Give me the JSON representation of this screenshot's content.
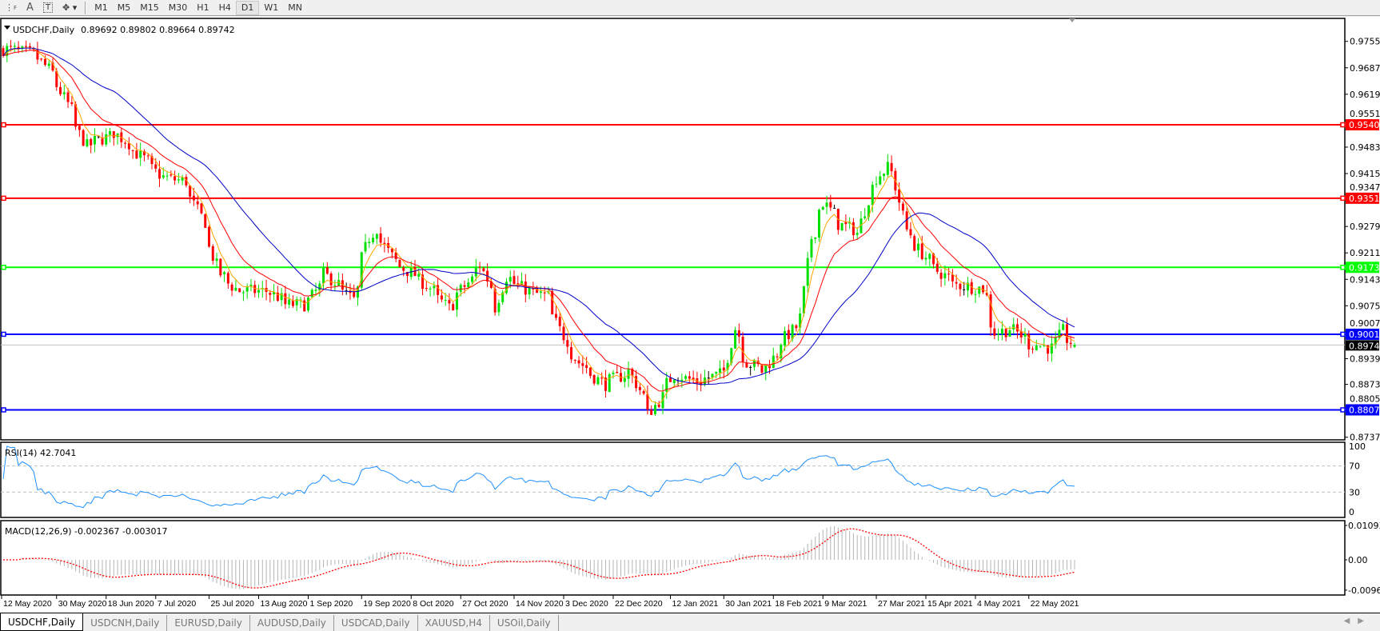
{
  "toolbar": {
    "items": [
      "M1",
      "M5",
      "M15",
      "M30",
      "H1",
      "H4",
      "D1",
      "W1",
      "MN"
    ],
    "active": "D1",
    "text_tool": "A",
    "icons": [
      "grid-icon",
      "text-icon",
      "text-label-icon",
      "arrows-icon"
    ]
  },
  "chart": {
    "symbol_label": "USDCHF,Daily",
    "ohlc": "0.89692 0.89802 0.89664 0.89742",
    "colors": {
      "bull": "#00e000",
      "bear": "#ff0000",
      "doji": "#000000",
      "ma_fast": "#ffa500",
      "ma_mid": "#ff0000",
      "ma_slow": "#0000c8"
    },
    "y_ticks": [
      "0.97550",
      "0.96870",
      "0.96190",
      "0.95510",
      "0.94830",
      "0.94150",
      "0.93470",
      "0.92790",
      "0.92110",
      "0.91430",
      "0.90750",
      "0.90070",
      "0.89390",
      "0.88730",
      "0.88050",
      "0.87370"
    ],
    "levels": [
      {
        "value": "0.95404",
        "color": "#ff0000"
      },
      {
        "value": "0.93516",
        "color": "#ff0000"
      },
      {
        "value": "0.91739",
        "color": "#00ff00"
      },
      {
        "value": "0.90018",
        "color": "#0000ff"
      },
      {
        "value": "0.88074",
        "color": "#0000ff"
      }
    ],
    "current_price": "0.89742"
  },
  "rsi": {
    "label": "RSI(14) 42.7041",
    "ticks": [
      "100",
      "70",
      "30",
      "0"
    ],
    "color": "#1e90ff"
  },
  "macd": {
    "label": "MACD(12,26,9) -0.002367 -0.003017",
    "ticks": [
      "0.010933",
      "0.00",
      "-0.009653"
    ]
  },
  "chart_data": {
    "type": "candlestick",
    "symbol": "USDCHF",
    "timeframe": "Daily",
    "last_bar": {
      "open": 0.89692,
      "high": 0.89802,
      "low": 0.89664,
      "close": 0.89742
    },
    "ylim": [
      0.8737,
      0.9755
    ],
    "x_tick_labels": [
      "12 May 2020",
      "30 May 2020",
      "18 Jun 2020",
      "7 Jul 2020",
      "25 Jul 2020",
      "13 Aug 2020",
      "1 Sep 2020",
      "19 Sep 2020",
      "8 Oct 2020",
      "27 Oct 2020",
      "14 Nov 2020",
      "3 Dec 2020",
      "22 Dec 2020",
      "12 Jan 2021",
      "30 Jan 2021",
      "18 Feb 2021",
      "9 Mar 2021",
      "27 Mar 2021",
      "15 Apr 2021",
      "4 May 2021",
      "22 May 2021"
    ],
    "approx_close_path": [
      [
        "2020-05-13",
        0.9735
      ],
      [
        "2020-05-24",
        0.972
      ],
      [
        "2020-05-31",
        0.9656
      ],
      [
        "2020-06-11",
        0.9486
      ],
      [
        "2020-06-22",
        0.952
      ],
      [
        "2020-07-09",
        0.9406
      ],
      [
        "2020-07-17",
        0.9395
      ],
      [
        "2020-07-24",
        0.929
      ],
      [
        "2020-07-30",
        0.9157
      ],
      [
        "2020-08-06",
        0.9113
      ],
      [
        "2020-08-17",
        0.9113
      ],
      [
        "2020-08-24",
        0.9078
      ],
      [
        "2020-08-31",
        0.9078
      ],
      [
        "2020-09-07",
        0.9157
      ],
      [
        "2020-09-17",
        0.909
      ],
      [
        "2020-09-23",
        0.925
      ],
      [
        "2020-09-25",
        0.9275
      ],
      [
        "2020-10-02",
        0.919
      ],
      [
        "2020-10-13",
        0.9135
      ],
      [
        "2020-10-22",
        0.907
      ],
      [
        "2020-11-03",
        0.918
      ],
      [
        "2020-11-09",
        0.907
      ],
      [
        "2020-11-12",
        0.915
      ],
      [
        "2020-11-20",
        0.9113
      ],
      [
        "2020-11-27",
        0.91
      ],
      [
        "2020-12-03",
        0.8997
      ],
      [
        "2020-12-09",
        0.8929
      ],
      [
        "2020-12-18",
        0.8873
      ],
      [
        "2020-12-28",
        0.8907
      ],
      [
        "2021-01-04",
        0.8796
      ],
      [
        "2021-01-13",
        0.8898
      ],
      [
        "2021-01-22",
        0.888
      ],
      [
        "2021-02-01",
        0.8907
      ],
      [
        "2021-02-04",
        0.9017
      ],
      [
        "2021-02-09",
        0.8929
      ],
      [
        "2021-02-15",
        0.8907
      ],
      [
        "2021-02-22",
        0.8985
      ],
      [
        "2021-03-01",
        0.9045
      ],
      [
        "2021-03-04",
        0.925
      ],
      [
        "2021-03-09",
        0.934
      ],
      [
        "2021-03-15",
        0.9285
      ],
      [
        "2021-03-22",
        0.9262
      ],
      [
        "2021-03-26",
        0.938
      ],
      [
        "2021-04-01",
        0.943
      ],
      [
        "2021-04-05",
        0.938
      ],
      [
        "2021-04-08",
        0.927
      ],
      [
        "2021-04-15",
        0.92
      ],
      [
        "2021-04-19",
        0.917
      ],
      [
        "2021-04-26",
        0.913
      ],
      [
        "2021-05-06",
        0.912
      ],
      [
        "2021-05-11",
        0.9006
      ],
      [
        "2021-05-17",
        0.9017
      ],
      [
        "2021-05-24",
        0.8977
      ],
      [
        "2021-06-01",
        0.8966
      ],
      [
        "2021-06-04",
        0.9011
      ],
      [
        "2021-06-09",
        0.89742
      ]
    ],
    "indicators": [
      "RSI(14)",
      "MACD(12,26,9)"
    ],
    "rsi_levels": [
      30,
      70
    ],
    "rsi_ylim": [
      0,
      100
    ],
    "macd_ylim": [
      -0.009653,
      0.010933
    ]
  },
  "tabs": {
    "items": [
      "USDCHF,Daily",
      "USDCNH,Daily",
      "EURUSD,Daily",
      "AUDUSD,Daily",
      "USDCAD,Daily",
      "XAUUSD,H4",
      "USOil,Daily"
    ],
    "active": 0
  }
}
